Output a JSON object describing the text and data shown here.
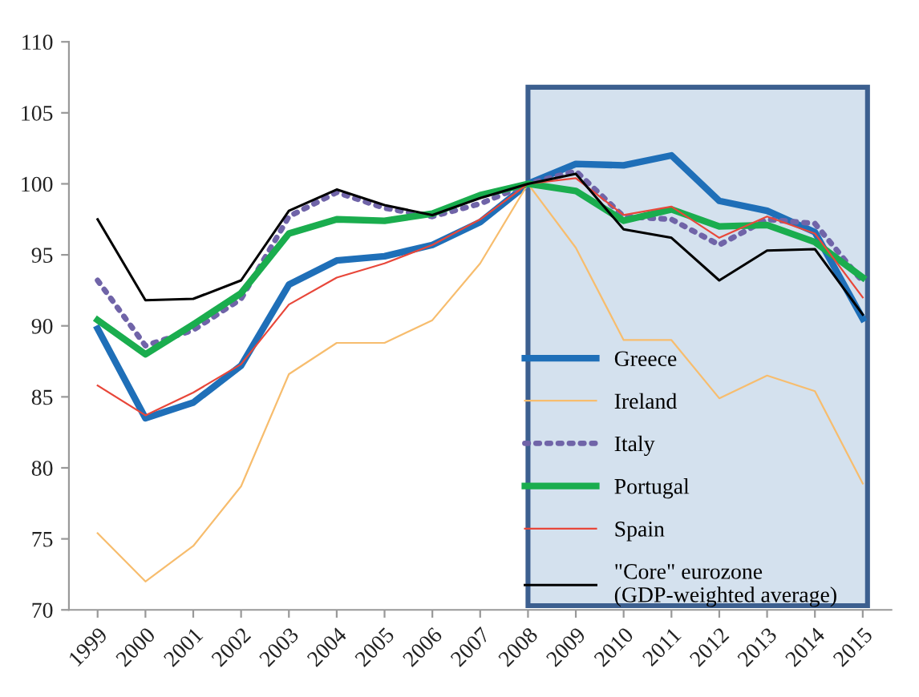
{
  "chart_data": {
    "type": "line",
    "categories": [
      "1999",
      "2000",
      "2001",
      "2002",
      "2003",
      "2004",
      "2005",
      "2006",
      "2007",
      "2008",
      "2009",
      "2010",
      "2011",
      "2012",
      "2013",
      "2014",
      "2015"
    ],
    "ylim": [
      70,
      110
    ],
    "yticks": [
      70,
      75,
      80,
      85,
      90,
      95,
      100,
      105,
      110
    ],
    "grid": false,
    "legend": "bottom right",
    "marker": "none",
    "bands": [
      {
        "axis": "x",
        "from": "2008",
        "to": "2015",
        "color": "#d4e1ee"
      }
    ],
    "series": [
      {
        "name": "Greece",
        "color": "#1f6fb8",
        "line_style": "solid",
        "values": [
          89.8,
          83.5,
          84.6,
          87.2,
          92.9,
          94.6,
          94.9,
          95.7,
          97.3,
          100,
          101.4,
          101.3,
          102.0,
          98.8,
          98.1,
          96.6,
          90.5
        ]
      },
      {
        "name": "Ireland",
        "color": "#f7bd6e",
        "line_style": "solid",
        "values": [
          75.4,
          72.0,
          74.5,
          78.7,
          86.6,
          88.8,
          88.8,
          90.4,
          94.4,
          100,
          95.5,
          89.0,
          89.0,
          84.9,
          86.5,
          85.4,
          78.9
        ]
      },
      {
        "name": "Italy",
        "color": "#7064a8",
        "line_style": "dotted",
        "values": [
          93.2,
          88.6,
          89.7,
          91.9,
          97.7,
          99.4,
          98.3,
          97.7,
          98.6,
          100,
          100.9,
          97.7,
          97.5,
          95.7,
          97.5,
          97.2,
          93.1
        ]
      },
      {
        "name": "Portugal",
        "color": "#1aad4e",
        "line_style": "solid",
        "values": [
          90.4,
          88.0,
          90.1,
          92.3,
          96.5,
          97.5,
          97.4,
          97.9,
          99.2,
          100,
          99.5,
          97.4,
          98.2,
          97.0,
          97.1,
          95.9,
          93.4
        ]
      },
      {
        "name": "Spain",
        "color": "#e8473a",
        "line_style": "solid",
        "values": [
          85.8,
          83.7,
          85.3,
          87.3,
          91.5,
          93.4,
          94.4,
          95.7,
          97.5,
          100,
          100.4,
          97.8,
          98.4,
          96.2,
          97.7,
          96.5,
          92.0
        ]
      },
      {
        "name": "\"Core\" eurozone (GDP-weighted average)",
        "color": "#000000",
        "line_style": "solid",
        "values": [
          97.5,
          91.8,
          91.9,
          93.2,
          98.1,
          99.6,
          98.5,
          97.8,
          99.0,
          100,
          100.7,
          96.8,
          96.2,
          93.2,
          95.3,
          95.4,
          90.8
        ]
      }
    ]
  }
}
